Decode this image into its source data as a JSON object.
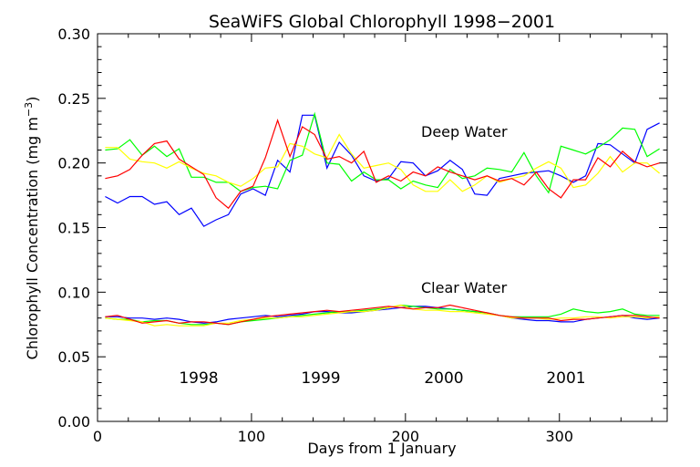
{
  "chart_data": {
    "type": "line",
    "title": "SeaWiFS Global Chlorophyll 1998−2001",
    "xlabel": "Days from 1 January",
    "ylabel": "Chlorophyll Concentration  (mg m",
    "ylabel_sup": "−3",
    "ylabel_close": ")",
    "xlim": [
      0,
      370
    ],
    "ylim": [
      0,
      0.3
    ],
    "x_ticks": [
      0,
      100,
      200,
      300
    ],
    "x_tick_labels": [
      "0",
      "100",
      "200",
      "300"
    ],
    "y_ticks": [
      0,
      0.05,
      0.1,
      0.15,
      0.2,
      0.25,
      0.3
    ],
    "y_tick_labels": [
      "0.00",
      "0.05",
      "0.10",
      "0.15",
      "0.20",
      "0.25",
      "0.30"
    ],
    "grid": false,
    "annotations": [
      "Deep Water",
      "Clear Water"
    ],
    "legend": [
      {
        "name": "1998",
        "color": "#0000ff"
      },
      {
        "name": "1999",
        "color": "#00ff00"
      },
      {
        "name": "2000",
        "color": "#ffff00"
      },
      {
        "name": "2001",
        "color": "#ff0000"
      }
    ],
    "x": [
      5,
      13,
      21,
      29,
      37,
      45,
      53,
      61,
      69,
      77,
      85,
      93,
      101,
      109,
      117,
      125,
      133,
      141,
      149,
      157,
      165,
      173,
      181,
      189,
      197,
      205,
      213,
      221,
      229,
      237,
      245,
      253,
      261,
      269,
      277,
      285,
      293,
      301,
      309,
      317,
      325,
      333,
      341,
      349,
      357,
      365
    ],
    "series": [
      {
        "name": "1998",
        "group": "Deep Water",
        "color": "#0000ff",
        "values": [
          0.174,
          0.169,
          0.174,
          0.174,
          0.168,
          0.17,
          0.16,
          0.165,
          0.151,
          0.156,
          0.16,
          0.176,
          0.18,
          0.175,
          0.202,
          0.193,
          0.237,
          0.237,
          0.196,
          0.216,
          0.206,
          0.19,
          0.186,
          0.188,
          0.201,
          0.2,
          0.19,
          0.194,
          0.202,
          0.195,
          0.176,
          0.175,
          0.188,
          0.19,
          0.192,
          0.193,
          0.194,
          0.19,
          0.185,
          0.19,
          0.215,
          0.214,
          0.207,
          0.2,
          0.226,
          0.231
        ]
      },
      {
        "name": "1999",
        "group": "Deep Water",
        "color": "#00ff00",
        "values": [
          0.21,
          0.211,
          0.218,
          0.206,
          0.213,
          0.205,
          0.211,
          0.189,
          0.189,
          0.185,
          0.185,
          0.178,
          0.181,
          0.182,
          0.18,
          0.202,
          0.206,
          0.238,
          0.2,
          0.199,
          0.186,
          0.193,
          0.187,
          0.187,
          0.18,
          0.186,
          0.183,
          0.181,
          0.195,
          0.188,
          0.19,
          0.196,
          0.195,
          0.193,
          0.208,
          0.19,
          0.177,
          0.213,
          0.21,
          0.207,
          0.212,
          0.218,
          0.227,
          0.226,
          0.205,
          0.211
        ]
      },
      {
        "name": "2000",
        "group": "Deep Water",
        "color": "#ffff00",
        "values": [
          0.212,
          0.212,
          0.203,
          0.201,
          0.2,
          0.196,
          0.201,
          0.196,
          0.192,
          0.19,
          0.185,
          0.182,
          0.188,
          0.196,
          0.197,
          0.215,
          0.213,
          0.207,
          0.204,
          0.222,
          0.207,
          0.196,
          0.198,
          0.2,
          0.195,
          0.183,
          0.178,
          0.178,
          0.187,
          0.178,
          0.183,
          0.19,
          0.185,
          0.188,
          0.19,
          0.196,
          0.201,
          0.196,
          0.181,
          0.183,
          0.192,
          0.205,
          0.193,
          0.2,
          0.2,
          0.192
        ]
      },
      {
        "name": "2001",
        "group": "Deep Water",
        "color": "#ff0000",
        "values": [
          0.188,
          0.19,
          0.195,
          0.206,
          0.215,
          0.217,
          0.203,
          0.197,
          0.191,
          0.173,
          0.165,
          0.178,
          0.182,
          0.204,
          0.233,
          0.205,
          0.228,
          0.222,
          0.203,
          0.205,
          0.2,
          0.209,
          0.185,
          0.19,
          0.186,
          0.193,
          0.19,
          0.197,
          0.193,
          0.19,
          0.187,
          0.19,
          0.186,
          0.188,
          0.183,
          0.193,
          0.18,
          0.173,
          0.187,
          0.187,
          0.204,
          0.197,
          0.209,
          0.201,
          0.197,
          0.2
        ]
      },
      {
        "name": "1998",
        "group": "Clear Water",
        "color": "#0000ff",
        "values": [
          0.081,
          0.081,
          0.08,
          0.08,
          0.079,
          0.08,
          0.079,
          0.077,
          0.076,
          0.077,
          0.079,
          0.08,
          0.081,
          0.082,
          0.081,
          0.082,
          0.083,
          0.085,
          0.085,
          0.084,
          0.084,
          0.085,
          0.086,
          0.087,
          0.088,
          0.089,
          0.089,
          0.088,
          0.087,
          0.086,
          0.085,
          0.084,
          0.082,
          0.08,
          0.079,
          0.078,
          0.078,
          0.077,
          0.077,
          0.079,
          0.08,
          0.081,
          0.082,
          0.08,
          0.079,
          0.08
        ]
      },
      {
        "name": "1999",
        "group": "Clear Water",
        "color": "#00ff00",
        "values": [
          0.08,
          0.079,
          0.079,
          0.077,
          0.078,
          0.078,
          0.076,
          0.075,
          0.075,
          0.076,
          0.075,
          0.077,
          0.078,
          0.079,
          0.08,
          0.081,
          0.082,
          0.083,
          0.084,
          0.085,
          0.085,
          0.086,
          0.087,
          0.088,
          0.09,
          0.089,
          0.088,
          0.087,
          0.087,
          0.086,
          0.085,
          0.084,
          0.082,
          0.081,
          0.081,
          0.081,
          0.081,
          0.083,
          0.087,
          0.085,
          0.084,
          0.085,
          0.087,
          0.083,
          0.082,
          0.082
        ]
      },
      {
        "name": "2000",
        "group": "Clear Water",
        "color": "#ffff00",
        "values": [
          0.08,
          0.079,
          0.078,
          0.077,
          0.074,
          0.075,
          0.074,
          0.074,
          0.074,
          0.076,
          0.076,
          0.078,
          0.079,
          0.08,
          0.08,
          0.081,
          0.081,
          0.082,
          0.083,
          0.084,
          0.085,
          0.085,
          0.086,
          0.088,
          0.09,
          0.087,
          0.086,
          0.086,
          0.085,
          0.085,
          0.084,
          0.083,
          0.082,
          0.08,
          0.08,
          0.08,
          0.079,
          0.08,
          0.08,
          0.081,
          0.081,
          0.08,
          0.081,
          0.081,
          0.08,
          0.081
        ]
      },
      {
        "name": "2001",
        "group": "Clear Water",
        "color": "#ff0000",
        "values": [
          0.081,
          0.082,
          0.079,
          0.076,
          0.077,
          0.078,
          0.076,
          0.077,
          0.077,
          0.076,
          0.075,
          0.077,
          0.079,
          0.081,
          0.082,
          0.083,
          0.084,
          0.085,
          0.086,
          0.085,
          0.086,
          0.087,
          0.088,
          0.089,
          0.088,
          0.087,
          0.088,
          0.088,
          0.09,
          0.088,
          0.086,
          0.084,
          0.082,
          0.081,
          0.08,
          0.08,
          0.08,
          0.078,
          0.079,
          0.079,
          0.08,
          0.081,
          0.082,
          0.082,
          0.081,
          0.08
        ]
      }
    ]
  }
}
